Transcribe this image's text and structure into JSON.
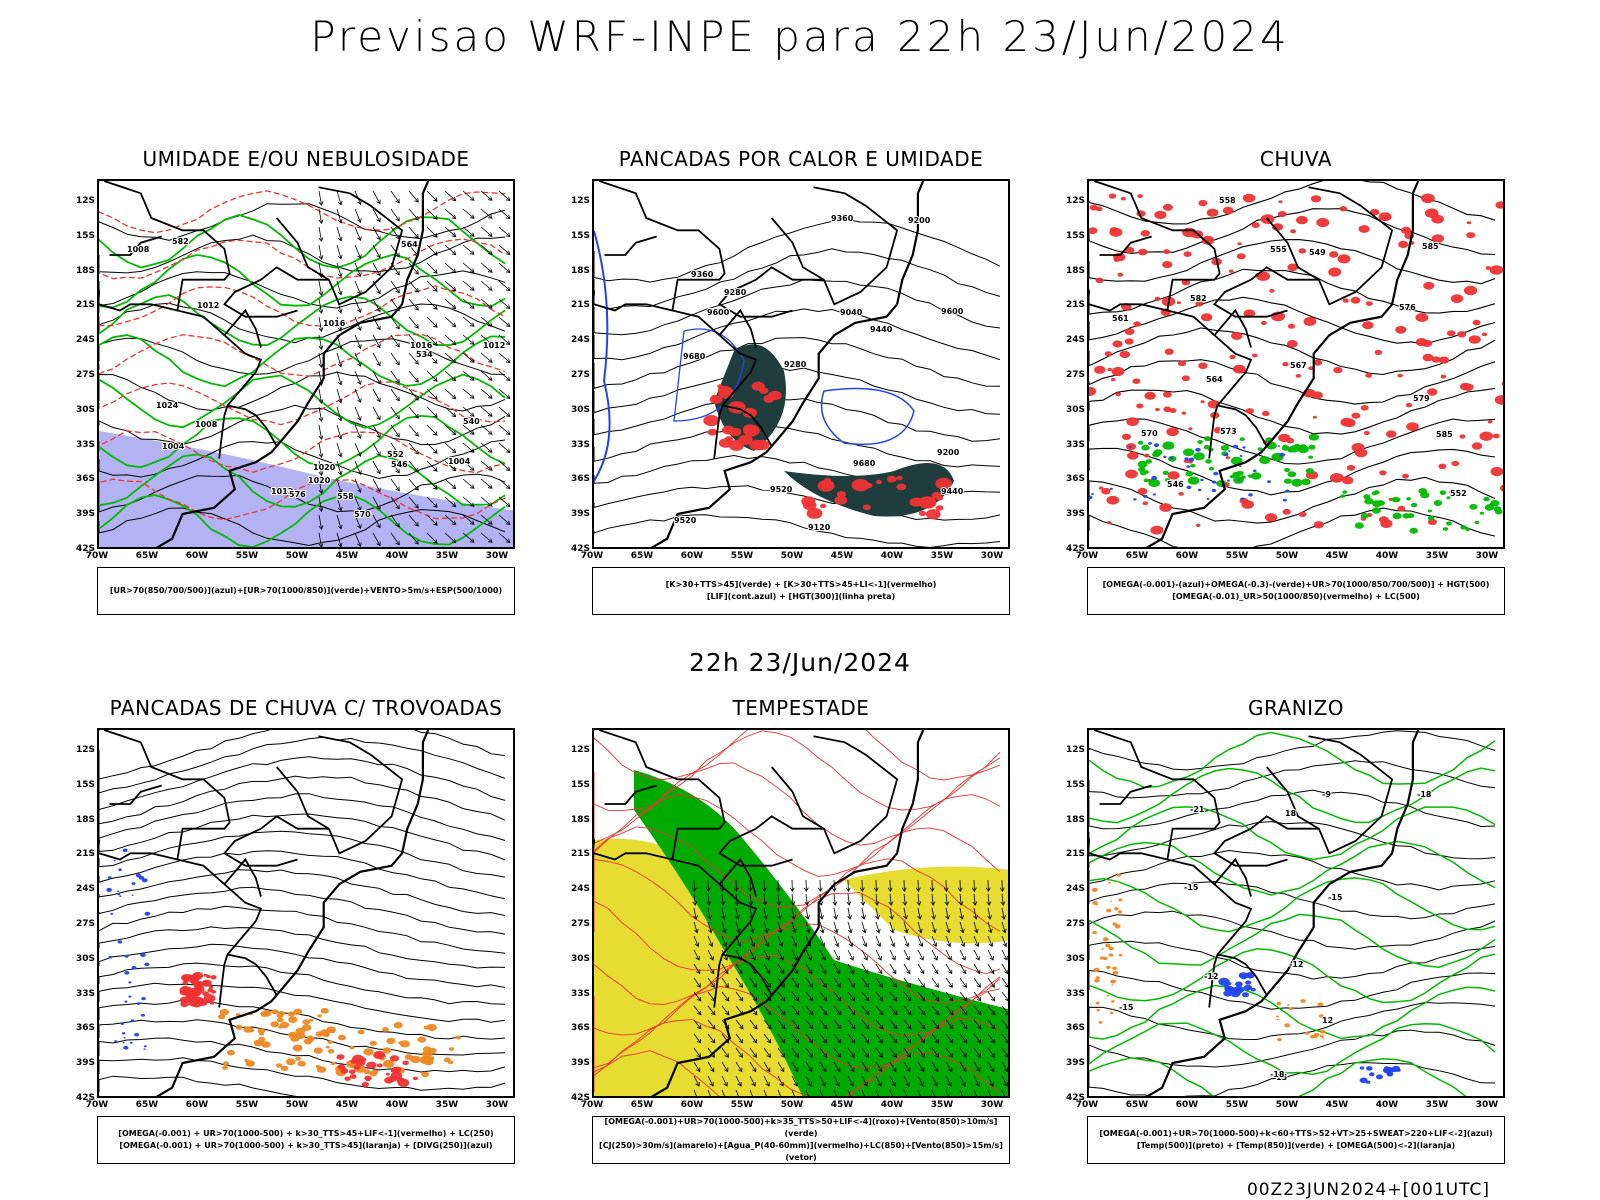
{
  "header": {
    "title": "Previsao WRF-INPE  para 22h 23/Jun/2024",
    "subtitle": "22h 23/Jun/2024",
    "footer": "00Z23JUN2024+[001UTC]"
  },
  "axes": {
    "lat_labels": [
      "12S",
      "15S",
      "18S",
      "21S",
      "24S",
      "27S",
      "30S",
      "33S",
      "36S",
      "39S",
      "42S"
    ],
    "lon_labels": [
      "70W",
      "65W",
      "60W",
      "55W",
      "50W",
      "45W",
      "40W",
      "35W",
      "30W"
    ]
  },
  "panels": [
    {
      "id": "umidade",
      "title": "UMIDADE E/OU NEBULOSIDADE",
      "legend": [
        "[UR>70(850/700/500)](azul)+[UR>70(1000/850)](verde)+VENTO>5m/s+ESP(500/1000)"
      ],
      "contour_labels": [
        "1012",
        "1020",
        "1016",
        "1008",
        "1012",
        "1004",
        "1020",
        "1024",
        "1016",
        "1012",
        "1008",
        "1004",
        "576",
        "570",
        "564",
        "558",
        "552",
        "546",
        "540",
        "534",
        "582"
      ]
    },
    {
      "id": "pancadas-calor",
      "title": "PANCADAS POR CALOR E UMIDADE",
      "legend": [
        "[K>30+TTS>45](verde) + [K>30+TTS>45+LI<-1](vermelho)",
        "[LIF](cont.azul) + [HGT(300)](linha preta)"
      ],
      "contour_labels": [
        "9680",
        "9680",
        "9600",
        "9520",
        "9440",
        "9360",
        "9280",
        "9200",
        "9120",
        "9040",
        "9600",
        "9520",
        "9440",
        "9360",
        "9280",
        "9200"
      ]
    },
    {
      "id": "chuva",
      "title": "CHUVA",
      "legend": [
        "[OMEGA(-0.001)-(azul)+OMEGA(-0.3)-(verde)+UR>70(1000/850/700/500)] + HGT(500)",
        "[OMEGA(-0.01)_UR>50(1000/850)(vermelho) + LC(500)"
      ],
      "contour_labels": [
        "585",
        "585",
        "582",
        "579",
        "576",
        "573",
        "570",
        "567",
        "564",
        "561",
        "558",
        "555",
        "552",
        "549",
        "546"
      ]
    },
    {
      "id": "pancadas-trovoadas",
      "title": "PANCADAS DE CHUVA C/ TROVOADAS",
      "legend": [
        "[OMEGA(-0.001) + UR>70(1000-500) + k>30_TTS>45+LIF<-1](vermelho) + LC(250)",
        "[OMEGA(-0.001) + UR>70(1000-500) + k>30_TTS>45](laranja) + [DIVG(250)](azul)"
      ],
      "contour_labels": []
    },
    {
      "id": "tempestade",
      "title": "TEMPESTADE",
      "legend": [
        "[OMEGA(-0.001)+UR>70(1000-500)+k>35_TTS>50+LIF<-4](roxo)+[Vento(850)>10m/s](verde)",
        "[CJ(250)>30m/s](amarelo)+[Agua_P(40-60mm)](vermelho)+LC(850)+[Vento(850)>15m/s](vetor)"
      ],
      "contour_labels": []
    },
    {
      "id": "granizo",
      "title": "GRANIZO",
      "legend": [
        "[OMEGA(-0.001)+UR>70(1000-500)+k<60+TTS>52+VT>25+SWEAT>220+LIF<-2](azul)",
        "[Temp(500)](preto) + [Temp(850)](verde) + [OMEGA(500)<-2](laranja)"
      ],
      "contour_labels": [
        "-15",
        "-18",
        "-21",
        "-15",
        "-12",
        "-9",
        "15",
        "12",
        "18",
        "-15",
        "-18",
        "-12"
      ]
    }
  ],
  "colors": {
    "blue": "#2244ee",
    "green": "#00bb00",
    "red": "#ee3333",
    "orange": "#ee8822",
    "yellow": "#e6dc32",
    "lavender": "#8a8aee",
    "darkteal": "#1f3d3d"
  }
}
